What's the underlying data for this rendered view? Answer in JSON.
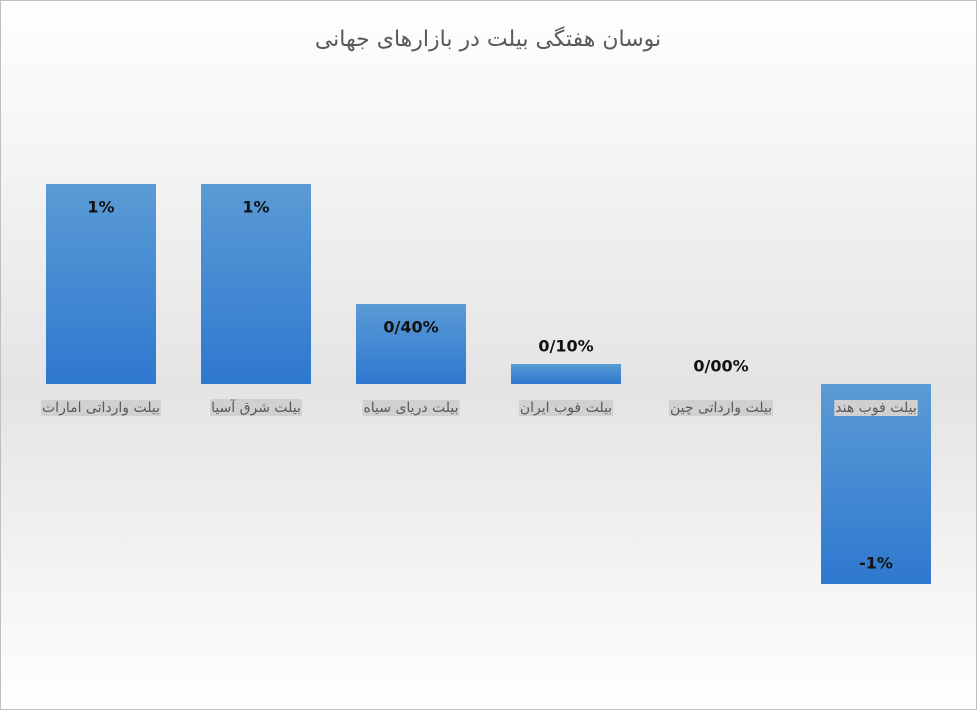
{
  "chart_data": {
    "type": "bar",
    "title": "نوسان هفتگی بیلت در بازارهای جهانی",
    "categories": [
      "بیلت وارداتی امارات",
      "بیلت  شرق آسیا",
      "بیلت دریای سیاه",
      "بیلت فوب ایران",
      "بیلت وارداتی چین",
      "بیلت فوب هند"
    ],
    "values": [
      1,
      1,
      0.4,
      0.1,
      0,
      -1
    ],
    "value_labels": [
      "1%",
      "1%",
      "0/40%",
      "0/10%",
      "0/00%",
      "-1%"
    ],
    "color": "#4a8fd8"
  }
}
